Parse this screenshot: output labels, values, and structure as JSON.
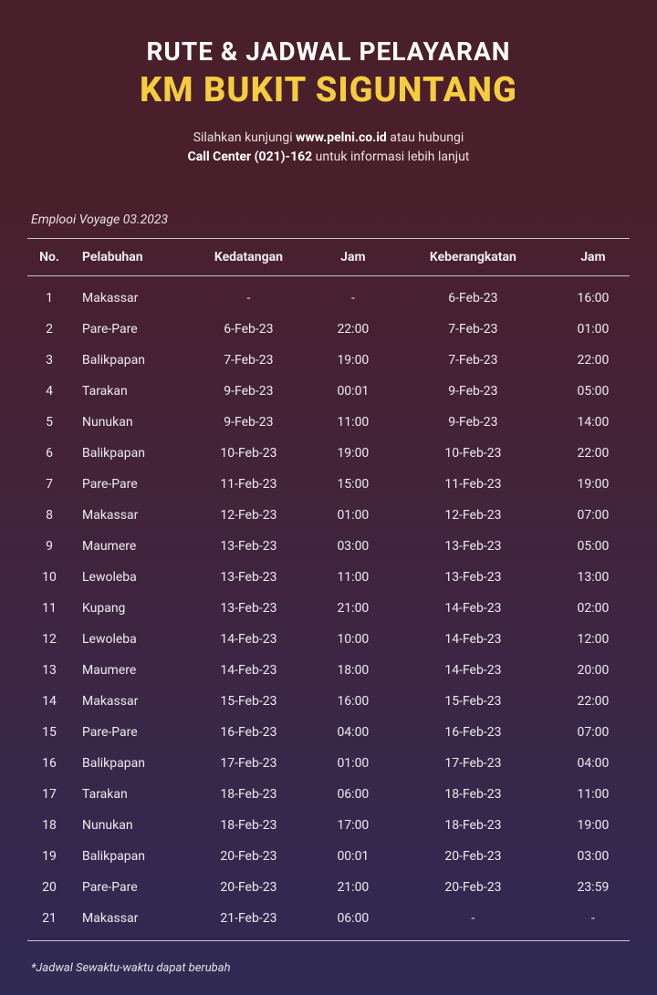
{
  "header": {
    "line1": "RUTE & JADWAL PELAYARAN",
    "line2": "KM BUKIT SIGUNTANG"
  },
  "subheader": {
    "text1": "Silahkan kunjungi ",
    "bold1": "www.pelni.co.id",
    "text2": " atau hubungi",
    "bold2": "Call Center (021)-162",
    "text3": " untuk informasi lebih lanjut"
  },
  "voyage_label": "Emplooi Voyage 03.2023",
  "columns": [
    "No.",
    "Pelabuhan",
    "Kedatangan",
    "Jam",
    "Keberangkatan",
    "Jam"
  ],
  "rows": [
    [
      "1",
      "Makassar",
      "-",
      "-",
      "6-Feb-23",
      "16:00"
    ],
    [
      "2",
      "Pare-Pare",
      "6-Feb-23",
      "22:00",
      "7-Feb-23",
      "01:00"
    ],
    [
      "3",
      "Balikpapan",
      "7-Feb-23",
      "19:00",
      "7-Feb-23",
      "22:00"
    ],
    [
      "4",
      "Tarakan",
      "9-Feb-23",
      "00:01",
      "9-Feb-23",
      "05:00"
    ],
    [
      "5",
      "Nunukan",
      "9-Feb-23",
      "11:00",
      "9-Feb-23",
      "14:00"
    ],
    [
      "6",
      "Balikpapan",
      "10-Feb-23",
      "19:00",
      "10-Feb-23",
      "22:00"
    ],
    [
      "7",
      "Pare-Pare",
      "11-Feb-23",
      "15:00",
      "11-Feb-23",
      "19:00"
    ],
    [
      "8",
      "Makassar",
      "12-Feb-23",
      "01:00",
      "12-Feb-23",
      "07:00"
    ],
    [
      "9",
      "Maumere",
      "13-Feb-23",
      "03:00",
      "13-Feb-23",
      "05:00"
    ],
    [
      "10",
      "Lewoleba",
      "13-Feb-23",
      "11:00",
      "13-Feb-23",
      "13:00"
    ],
    [
      "11",
      "Kupang",
      "13-Feb-23",
      "21:00",
      "14-Feb-23",
      "02:00"
    ],
    [
      "12",
      "Lewoleba",
      "14-Feb-23",
      "10:00",
      "14-Feb-23",
      "12:00"
    ],
    [
      "13",
      "Maumere",
      "14-Feb-23",
      "18:00",
      "14-Feb-23",
      "20:00"
    ],
    [
      "14",
      "Makassar",
      "15-Feb-23",
      "16:00",
      "15-Feb-23",
      "22:00"
    ],
    [
      "15",
      "Pare-Pare",
      "16-Feb-23",
      "04:00",
      "16-Feb-23",
      "07:00"
    ],
    [
      "16",
      "Balikpapan",
      "17-Feb-23",
      "01:00",
      "17-Feb-23",
      "04:00"
    ],
    [
      "17",
      "Tarakan",
      "18-Feb-23",
      "06:00",
      "18-Feb-23",
      "11:00"
    ],
    [
      "18",
      "Nunukan",
      "18-Feb-23",
      "17:00",
      "18-Feb-23",
      "19:00"
    ],
    [
      "19",
      "Balikpapan",
      "20-Feb-23",
      "00:01",
      "20-Feb-23",
      "03:00"
    ],
    [
      "20",
      "Pare-Pare",
      "20-Feb-23",
      "21:00",
      "20-Feb-23",
      "23:59"
    ],
    [
      "21",
      "Makassar",
      "21-Feb-23",
      "06:00",
      "-",
      "-"
    ]
  ],
  "footnote": "*Jadwal Sewaktu-waktu dapat berubah",
  "style": {
    "background_gradient_top": "#4a1f2c",
    "background_gradient_bottom": "#2f2a55",
    "title_color": "#ffffff",
    "subtitle_color": "#f5cc3f",
    "text_color": "#eceaee",
    "border_color": "#c9c3cc",
    "title1_fontsize": 28,
    "title2_fontsize": 38,
    "body_fontsize": 14
  }
}
